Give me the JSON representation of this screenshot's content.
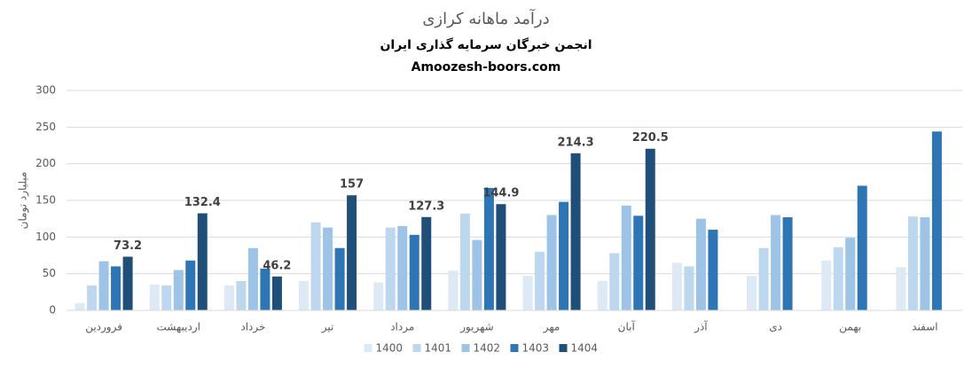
{
  "chart_data": {
    "type": "bar",
    "title": "درآمد ماهانه کرازی",
    "subtitle": "انجمن خبرگان سرمایه گذاری ایران",
    "source": "Amoozesh-boors.com",
    "y_label": "میلیارد تومان",
    "categories": [
      "فروردین",
      "اردیبهشت",
      "خرداد",
      "تیر",
      "مرداد",
      "شهریور",
      "مهر",
      "آبان",
      "آذر",
      "دی",
      "بهمن",
      "اسفند"
    ],
    "series": [
      {
        "name": "1400",
        "color": "#dee9f6",
        "values": [
          10,
          35,
          34,
          40,
          38,
          54,
          47,
          40,
          65,
          47,
          68,
          59
        ]
      },
      {
        "name": "1401",
        "color": "#bdd7ee",
        "values": [
          34,
          34,
          40,
          120,
          113,
          132,
          80,
          78,
          60,
          85,
          86,
          128
        ]
      },
      {
        "name": "1402",
        "color": "#9dc3e6",
        "values": [
          67,
          55,
          85,
          113,
          115,
          96,
          130,
          143,
          125,
          130,
          99,
          127
        ]
      },
      {
        "name": "1403",
        "color": "#2e75b6",
        "values": [
          60,
          68,
          57,
          85,
          103,
          167,
          148,
          129,
          110,
          127,
          170,
          244
        ]
      },
      {
        "name": "1404",
        "color": "#1f4e79",
        "values": [
          73.2,
          132.4,
          46.2,
          157,
          127.3,
          144.9,
          214.3,
          220.5,
          null,
          null,
          null,
          null
        ],
        "show_labels": true
      }
    ],
    "ylim": [
      0,
      300
    ],
    "yticks": [
      0,
      50,
      100,
      150,
      200,
      250,
      300
    ],
    "grid": true,
    "legend": "bottom"
  }
}
